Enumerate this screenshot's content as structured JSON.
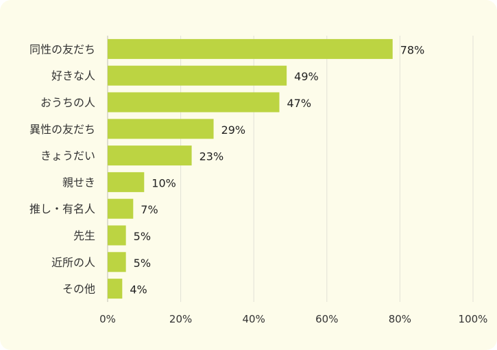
{
  "chart_data": {
    "type": "bar",
    "orientation": "horizontal",
    "categories": [
      "同性の友だち",
      "好きな人",
      "おうちの人",
      "異性の友だち",
      "きょうだい",
      "親せき",
      "推し・有名人",
      "先生",
      "近所の人",
      "その他"
    ],
    "values": [
      78,
      49,
      47,
      29,
      23,
      10,
      7,
      5,
      5,
      4
    ],
    "value_labels": [
      "78%",
      "49%",
      "47%",
      "29%",
      "23%",
      "10%",
      "7%",
      "5%",
      "5%",
      "4%"
    ],
    "x_ticks": [
      "0%",
      "20%",
      "40%",
      "60%",
      "80%",
      "100%"
    ],
    "xlim": [
      0,
      100
    ],
    "grid": true,
    "colors": {
      "bar": "#bcd442",
      "background": "#fdfcea"
    }
  }
}
